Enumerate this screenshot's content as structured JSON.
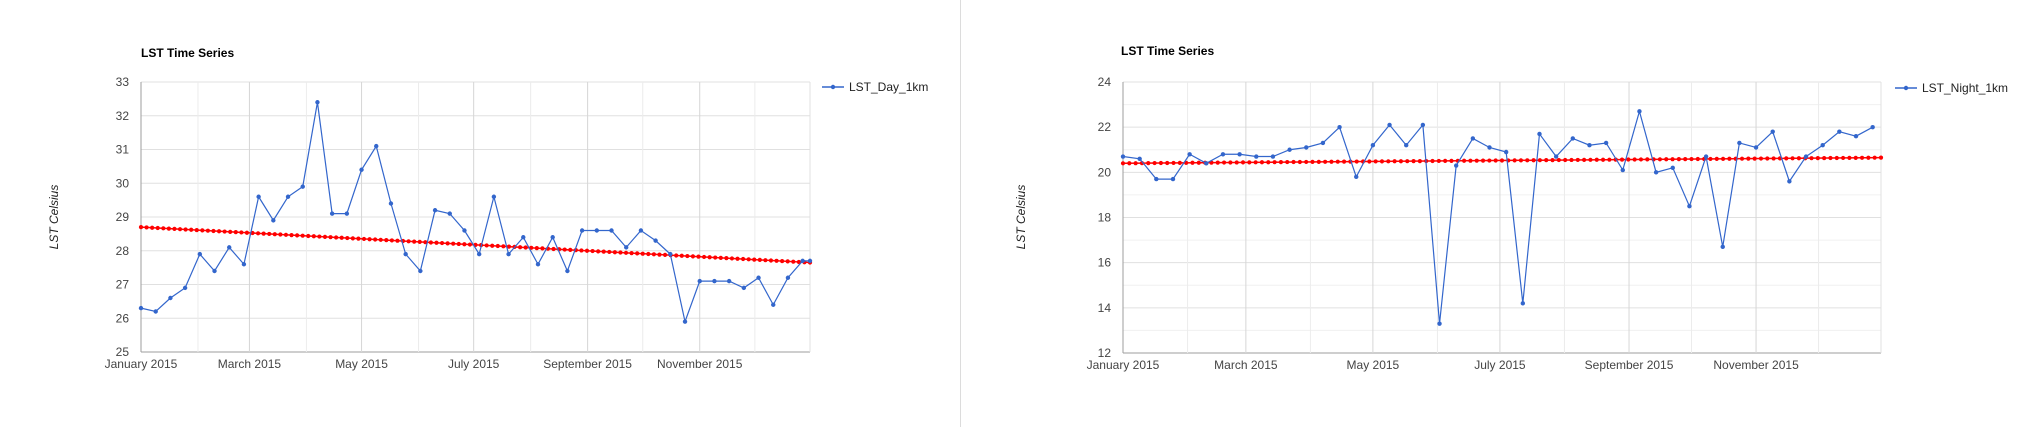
{
  "chart_data": [
    {
      "type": "line",
      "title": "LST  Time Series",
      "xlabel": "",
      "ylabel": "LST Celsius",
      "ylim": [
        25,
        33
      ],
      "yticks": [
        25,
        26,
        27,
        28,
        29,
        30,
        31,
        32,
        33
      ],
      "xlim": [
        "2015-01-01",
        "2015-12-31"
      ],
      "xticks": [
        {
          "date": "2015-01-01",
          "label": "January 2015"
        },
        {
          "date": "2015-03-01",
          "label": "March 2015"
        },
        {
          "date": "2015-05-01",
          "label": "May 2015"
        },
        {
          "date": "2015-07-01",
          "label": "July 2015"
        },
        {
          "date": "2015-09-01",
          "label": "September 2015"
        },
        {
          "date": "2015-11-01",
          "label": "November 2015"
        }
      ],
      "grid": true,
      "legend_position": "right",
      "x": [
        "2015-01-01",
        "2015-01-09",
        "2015-01-17",
        "2015-01-25",
        "2015-02-02",
        "2015-02-10",
        "2015-02-18",
        "2015-02-26",
        "2015-03-06",
        "2015-03-14",
        "2015-03-22",
        "2015-03-30",
        "2015-04-07",
        "2015-04-15",
        "2015-04-23",
        "2015-05-01",
        "2015-05-09",
        "2015-05-17",
        "2015-05-25",
        "2015-06-02",
        "2015-06-10",
        "2015-06-18",
        "2015-06-26",
        "2015-07-04",
        "2015-07-12",
        "2015-07-20",
        "2015-07-28",
        "2015-08-05",
        "2015-08-13",
        "2015-08-21",
        "2015-08-29",
        "2015-09-06",
        "2015-09-14",
        "2015-09-22",
        "2015-09-30",
        "2015-10-08",
        "2015-10-16",
        "2015-10-24",
        "2015-11-01",
        "2015-11-09",
        "2015-11-17",
        "2015-11-25",
        "2015-12-03",
        "2015-12-11",
        "2015-12-19",
        "2015-12-27",
        "2015-12-31"
      ],
      "series": [
        {
          "name": "LST_Day_1km",
          "color": "#3366cc",
          "values": [
            26.3,
            26.2,
            26.6,
            26.9,
            27.9,
            27.4,
            28.1,
            27.6,
            29.6,
            28.9,
            29.6,
            29.9,
            32.4,
            29.1,
            29.1,
            30.4,
            31.1,
            29.4,
            27.9,
            27.4,
            29.2,
            29.1,
            28.6,
            27.9,
            29.6,
            27.9,
            28.4,
            27.6,
            28.4,
            27.4,
            28.6,
            28.6,
            28.6,
            28.1,
            28.6,
            28.3,
            27.9,
            25.9,
            27.1,
            27.1,
            27.1,
            26.9,
            27.2,
            26.4,
            27.2,
            27.7,
            27.7
          ]
        },
        {
          "name": "trend",
          "color": "#ff0000",
          "style": "dotted",
          "values_start_end": [
            28.7,
            27.65
          ]
        }
      ]
    },
    {
      "type": "line",
      "title": "LST  Time Series",
      "xlabel": "",
      "ylabel": "LST Celsius",
      "ylim": [
        12,
        24
      ],
      "yticks": [
        12,
        14,
        16,
        18,
        20,
        22,
        24
      ],
      "xlim": [
        "2015-01-01",
        "2015-12-31"
      ],
      "xticks": [
        {
          "date": "2015-01-01",
          "label": "January 2015"
        },
        {
          "date": "2015-03-01",
          "label": "March 2015"
        },
        {
          "date": "2015-05-01",
          "label": "May 2015"
        },
        {
          "date": "2015-07-01",
          "label": "July 2015"
        },
        {
          "date": "2015-09-01",
          "label": "September 2015"
        },
        {
          "date": "2015-11-01",
          "label": "November 2015"
        }
      ],
      "grid": true,
      "legend_position": "right",
      "x": [
        "2015-01-01",
        "2015-01-09",
        "2015-01-17",
        "2015-01-25",
        "2015-02-02",
        "2015-02-10",
        "2015-02-18",
        "2015-02-26",
        "2015-03-06",
        "2015-03-14",
        "2015-03-22",
        "2015-03-30",
        "2015-04-07",
        "2015-04-15",
        "2015-04-23",
        "2015-05-01",
        "2015-05-09",
        "2015-05-17",
        "2015-05-25",
        "2015-06-02",
        "2015-06-10",
        "2015-06-18",
        "2015-06-26",
        "2015-07-04",
        "2015-07-12",
        "2015-07-20",
        "2015-07-28",
        "2015-08-05",
        "2015-08-13",
        "2015-08-21",
        "2015-08-29",
        "2015-09-06",
        "2015-09-14",
        "2015-09-22",
        "2015-09-30",
        "2015-10-08",
        "2015-10-16",
        "2015-10-24",
        "2015-11-01",
        "2015-11-09",
        "2015-11-17",
        "2015-11-25",
        "2015-12-03",
        "2015-12-11",
        "2015-12-19",
        "2015-12-27"
      ],
      "series": [
        {
          "name": "LST_Night_1km",
          "color": "#3366cc",
          "values": [
            20.7,
            20.6,
            19.7,
            19.7,
            20.8,
            20.4,
            20.8,
            20.8,
            20.7,
            20.7,
            21.0,
            21.1,
            21.3,
            22.0,
            19.8,
            21.2,
            22.1,
            21.2,
            22.1,
            13.3,
            20.3,
            21.5,
            21.1,
            20.9,
            14.2,
            21.7,
            20.7,
            21.5,
            21.2,
            21.3,
            20.1,
            22.7,
            20.0,
            20.2,
            18.5,
            20.7,
            16.7,
            21.3,
            21.1,
            21.8,
            19.6,
            20.7,
            21.2,
            21.8,
            21.6,
            22.0
          ]
        },
        {
          "name": "trend",
          "color": "#ff0000",
          "style": "dotted",
          "values_start_end": [
            20.4,
            20.65
          ]
        }
      ]
    }
  ]
}
